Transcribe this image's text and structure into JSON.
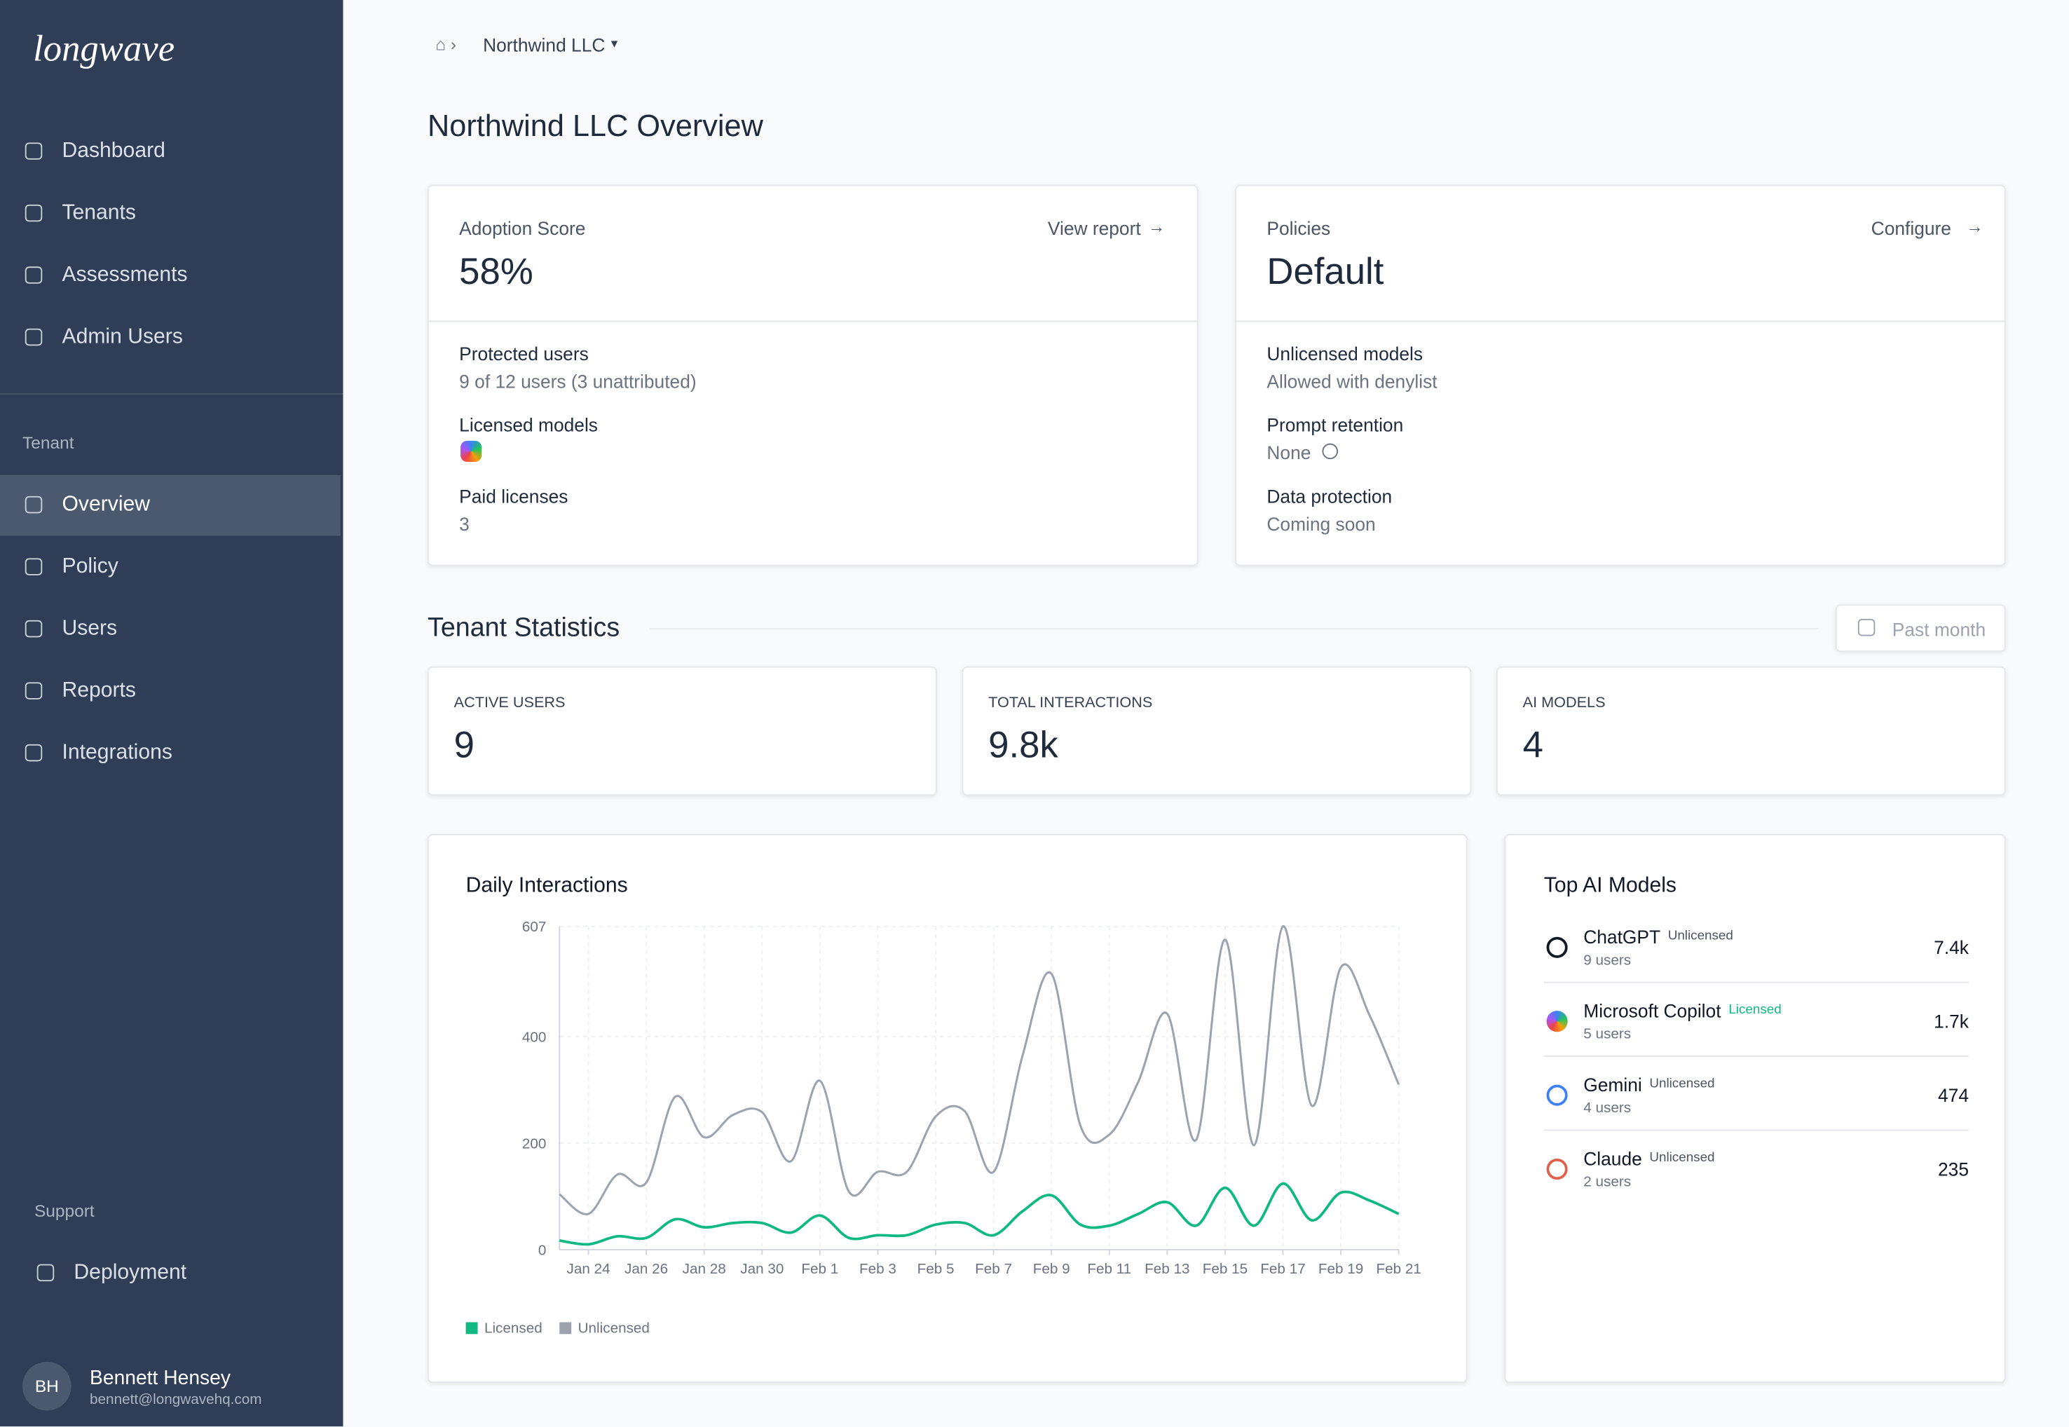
{
  "sidebar": {
    "logo": "longwave",
    "nav": [
      "Dashboard",
      "Tenants",
      "Assessments",
      "Admin Users"
    ],
    "section": "Tenant",
    "tenant_nav": [
      "Overview",
      "Policy",
      "Users",
      "Reports",
      "Integrations"
    ],
    "support": "Support",
    "support_nav": [
      "Deployment"
    ],
    "user": {
      "initials": "BH",
      "name": "Bennett Hensey",
      "email": "bennett@longwavehq.com"
    }
  },
  "breadcrumb": "Northwind LLC",
  "title": "Northwind LLC Overview",
  "cards": [
    {
      "label": "Adoption Score",
      "link": "View report",
      "value": "58%",
      "fields": [
        {
          "label": "Protected users",
          "value": "9 of 12 users (3 unattributed)"
        },
        {
          "label": "Licensed models"
        },
        {
          "label": "Paid licenses",
          "value": "3"
        }
      ]
    },
    {
      "label": "Policies",
      "link": "Configure",
      "value": "Default",
      "fields": [
        {
          "label": "Unlicensed models",
          "value": "Allowed with denylist"
        },
        {
          "label": "Prompt retention",
          "value": "None"
        },
        {
          "label": "Data protection",
          "value": "Coming soon"
        }
      ]
    }
  ],
  "statistics": {
    "title": "Tenant Statistics",
    "range": "Past month",
    "cards": [
      {
        "label": "ACTIVE USERS",
        "value": "9"
      },
      {
        "label": "TOTAL INTERACTIONS",
        "value": "9.8k"
      },
      {
        "label": "AI MODELS",
        "value": "4"
      }
    ]
  },
  "chart_data": {
    "type": "line",
    "title": "Daily Interactions",
    "categories": [
      null,
      "Jan 24",
      null,
      "Jan 26",
      null,
      "Jan 28",
      null,
      "Jan 30",
      null,
      "Feb 1",
      null,
      "Feb 3",
      null,
      "Feb 5",
      null,
      "Feb 7",
      null,
      "Feb 9",
      null,
      "Feb 11",
      null,
      "Feb 13",
      null,
      "Feb 15",
      null,
      "Feb 17",
      null,
      "Feb 19",
      null,
      "Feb 21"
    ],
    "series": [
      {
        "name": "Licensed",
        "color": "#10b981",
        "values": [
          17,
          10,
          25,
          22,
          57,
          42,
          50,
          50,
          32,
          64,
          22,
          27,
          27,
          47,
          50,
          27,
          72,
          102,
          47,
          45,
          67,
          89,
          45,
          116,
          45,
          124,
          55,
          107,
          92,
          67
        ]
      },
      {
        "name": "Unlicensed",
        "color": "#9ca3af",
        "values": [
          104,
          67,
          141,
          126,
          287,
          211,
          253,
          258,
          166,
          317,
          109,
          146,
          146,
          250,
          260,
          146,
          364,
          518,
          233,
          216,
          315,
          443,
          206,
          582,
          196,
          607,
          270,
          530,
          439,
          310
        ]
      }
    ],
    "ylim": [
      0,
      607
    ],
    "yticks": [
      0,
      200,
      400,
      607
    ],
    "grid": true,
    "legend": "bottom-left"
  },
  "top_models": {
    "title": "Top AI Models",
    "items": [
      {
        "name": "ChatGPT",
        "status": "Unlicensed",
        "users": "9 users",
        "count": "7.4k"
      },
      {
        "name": "Microsoft Copilot",
        "status": "Licensed",
        "users": "5 users",
        "count": "1.7k"
      },
      {
        "name": "Gemini",
        "status": "Unlicensed",
        "users": "4 users",
        "count": "474"
      },
      {
        "name": "Claude",
        "status": "Unlicensed",
        "users": "2 users",
        "count": "235"
      }
    ]
  }
}
